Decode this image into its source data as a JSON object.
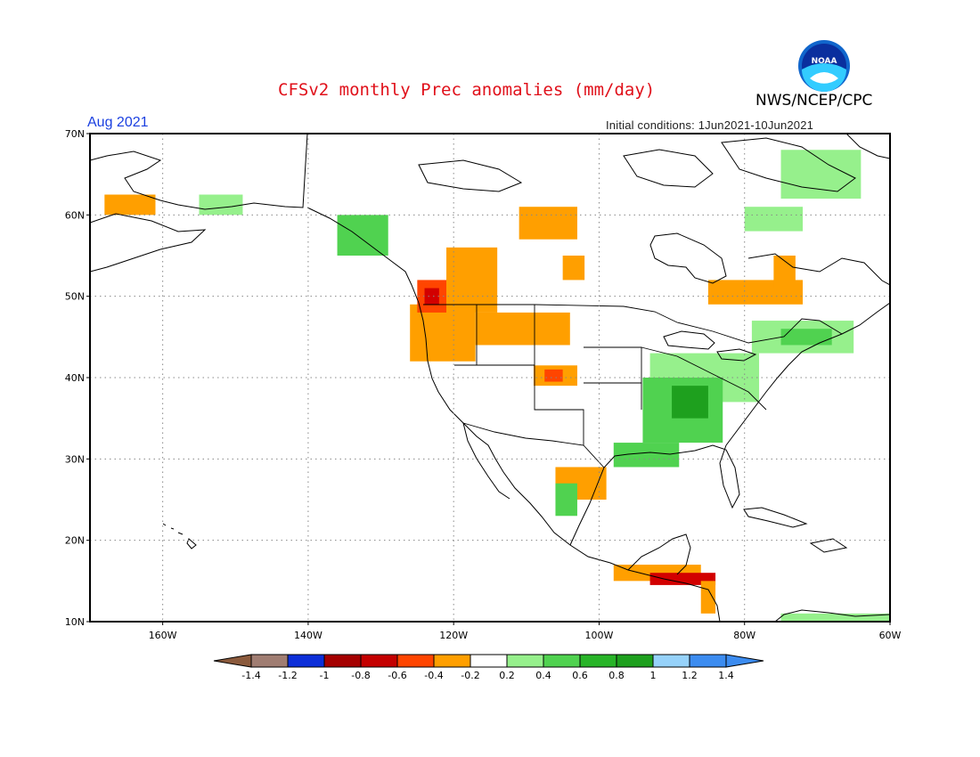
{
  "header": {
    "title": "CFSv2 monthly Prec anomalies (mm/day)",
    "agency": "NWS/NCEP/CPC",
    "valid_month": "Aug 2021",
    "initial_conditions": "Initial conditions: 1Jun2021-10Jun2021",
    "logo_text": "NOAA"
  },
  "map": {
    "lon_range": [
      -170,
      -60
    ],
    "lat_range": [
      10,
      70
    ],
    "lon_ticks": [
      {
        "lon": -160,
        "label": "160W"
      },
      {
        "lon": -140,
        "label": "140W"
      },
      {
        "lon": -120,
        "label": "120W"
      },
      {
        "lon": -100,
        "label": "100W"
      },
      {
        "lon": -80,
        "label": "80W"
      },
      {
        "lon": -60,
        "label": "60W"
      }
    ],
    "lat_ticks": [
      {
        "lat": 10,
        "label": "10N"
      },
      {
        "lat": 20,
        "label": "20N"
      },
      {
        "lat": 30,
        "label": "30N"
      },
      {
        "lat": 40,
        "label": "40N"
      },
      {
        "lat": 50,
        "label": "50N"
      },
      {
        "lat": 60,
        "label": "60N"
      },
      {
        "lat": 70,
        "label": "70N"
      }
    ],
    "grid": true,
    "anomaly_regions": [
      {
        "level": -0.3,
        "color": "#ff9f00",
        "lon": [
          -126,
          -117
        ],
        "lat": [
          42,
          49
        ]
      },
      {
        "level": -0.3,
        "color": "#ff9f00",
        "lon": [
          -117,
          -104
        ],
        "lat": [
          44,
          48
        ]
      },
      {
        "level": -0.3,
        "color": "#ff9f00",
        "lon": [
          -121,
          -114
        ],
        "lat": [
          48,
          56
        ]
      },
      {
        "level": -0.5,
        "color": "#ff4500",
        "lon": [
          -125,
          -121
        ],
        "lat": [
          48,
          52
        ]
      },
      {
        "level": -0.7,
        "color": "#d20000",
        "lon": [
          -124,
          -122
        ],
        "lat": [
          49,
          51
        ]
      },
      {
        "level": -0.3,
        "color": "#ff9f00",
        "lon": [
          -109,
          -103
        ],
        "lat": [
          39,
          41.5
        ]
      },
      {
        "level": -0.5,
        "color": "#ff4500",
        "lon": [
          -107.5,
          -105
        ],
        "lat": [
          39.5,
          41
        ]
      },
      {
        "level": -0.3,
        "color": "#ff9f00",
        "lon": [
          -111,
          -103
        ],
        "lat": [
          57,
          61
        ]
      },
      {
        "level": -0.3,
        "color": "#ff9f00",
        "lon": [
          -85,
          -72
        ],
        "lat": [
          49,
          52
        ]
      },
      {
        "level": -0.3,
        "color": "#ff9f00",
        "lon": [
          -76,
          -73
        ],
        "lat": [
          51,
          55
        ]
      },
      {
        "level": -0.3,
        "color": "#ff9f00",
        "lon": [
          -168,
          -161
        ],
        "lat": [
          60,
          62.5
        ]
      },
      {
        "level": -0.3,
        "color": "#ff9f00",
        "lon": [
          -105,
          -102
        ],
        "lat": [
          52,
          55
        ]
      },
      {
        "level": -0.3,
        "color": "#ff9f00",
        "lon": [
          -106,
          -99
        ],
        "lat": [
          25,
          29
        ]
      },
      {
        "level": -0.3,
        "color": "#ff9f00",
        "lon": [
          -98,
          -86
        ],
        "lat": [
          15,
          17
        ]
      },
      {
        "level": -0.7,
        "color": "#d20000",
        "lon": [
          -93,
          -84
        ],
        "lat": [
          14.5,
          16
        ]
      },
      {
        "level": -0.3,
        "color": "#ff9f00",
        "lon": [
          -86,
          -84
        ],
        "lat": [
          11,
          15
        ]
      },
      {
        "level": 0.3,
        "color": "#96f08c",
        "lon": [
          -93,
          -78
        ],
        "lat": [
          37,
          43
        ]
      },
      {
        "level": 0.5,
        "color": "#50d250",
        "lon": [
          -94,
          -83
        ],
        "lat": [
          32,
          40
        ]
      },
      {
        "level": 0.7,
        "color": "#1ea01e",
        "lon": [
          -90,
          -85
        ],
        "lat": [
          35,
          39
        ]
      },
      {
        "level": 0.5,
        "color": "#50d250",
        "lon": [
          -98,
          -89
        ],
        "lat": [
          29,
          32
        ]
      },
      {
        "level": 0.3,
        "color": "#96f08c",
        "lon": [
          -79,
          -65
        ],
        "lat": [
          43,
          47
        ]
      },
      {
        "level": 0.5,
        "color": "#50d250",
        "lon": [
          -75,
          -68
        ],
        "lat": [
          44,
          46
        ]
      },
      {
        "level": 0.5,
        "color": "#50d250",
        "lon": [
          -136,
          -129
        ],
        "lat": [
          55,
          60
        ]
      },
      {
        "level": 0.3,
        "color": "#96f08c",
        "lon": [
          -80,
          -72
        ],
        "lat": [
          58,
          61
        ]
      },
      {
        "level": 0.3,
        "color": "#96f08c",
        "lon": [
          -75,
          -64
        ],
        "lat": [
          62,
          68
        ]
      },
      {
        "level": 0.3,
        "color": "#96f08c",
        "lon": [
          -155,
          -149
        ],
        "lat": [
          60,
          62.5
        ]
      },
      {
        "level": 0.5,
        "color": "#50d250",
        "lon": [
          -106,
          -103
        ],
        "lat": [
          23,
          27
        ]
      },
      {
        "level": 0.3,
        "color": "#96f08c",
        "lon": [
          -75,
          -60
        ],
        "lat": [
          10,
          11
        ]
      }
    ]
  },
  "colorbar": {
    "labels": [
      "-1.4",
      "-1.2",
      "-1",
      "-0.8",
      "-0.6",
      "-0.4",
      "-0.2",
      "0.2",
      "0.4",
      "0.6",
      "0.8",
      "1",
      "1.2",
      "1.4"
    ],
    "colors": [
      "#8b5a3c",
      "#a07d72",
      "#0d2fd9",
      "#a50000",
      "#c40000",
      "#ff4500",
      "#ff9f00",
      "#ffffff",
      "#96f08c",
      "#50d250",
      "#28b428",
      "#1ea01e",
      "#96d2fa",
      "#3c8cf0",
      "#3c8cf0"
    ]
  }
}
